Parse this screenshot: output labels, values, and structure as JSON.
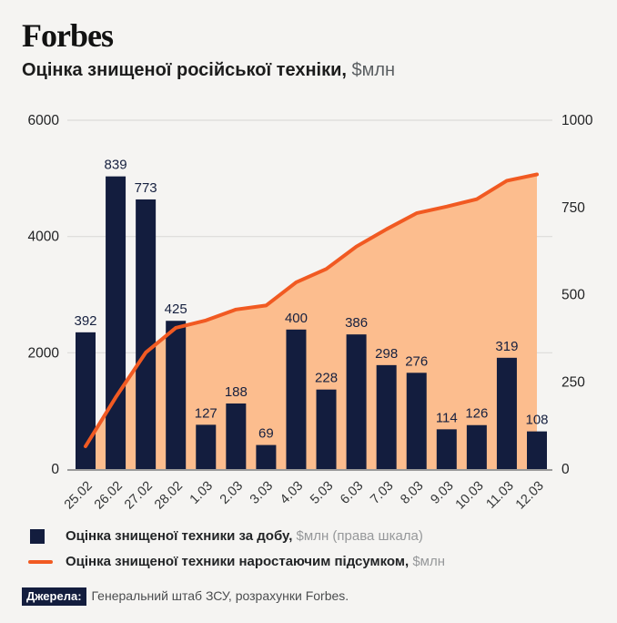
{
  "brand": "Forbes",
  "title": {
    "text": "Оцінка знищеної російської техніки,",
    "unit": "$млн"
  },
  "chart_data": {
    "type": "bar+line",
    "categories": [
      "25.02",
      "26.02",
      "27.02",
      "28.02",
      "1.03",
      "2.03",
      "3.03",
      "4.03",
      "5.03",
      "6.03",
      "7.03",
      "8.03",
      "9.03",
      "10.03",
      "11.03",
      "12.03"
    ],
    "series": [
      {
        "name": "Оцінка знищеної техники за добу, $млн (права шкала)",
        "type": "bar",
        "axis": "right",
        "values": [
          392,
          839,
          773,
          425,
          127,
          188,
          69,
          400,
          228,
          386,
          298,
          276,
          114,
          126,
          319,
          108
        ]
      },
      {
        "name": "Оцінка знищеної техники наростаючим підсумком, $млн",
        "type": "line",
        "axis": "left",
        "values": [
          392,
          1231,
          2004,
          2429,
          2556,
          2744,
          2813,
          3213,
          3441,
          3827,
          4125,
          4401,
          4515,
          4641,
          4960,
          5068
        ]
      }
    ],
    "left_axis": {
      "range": [
        0,
        6000
      ],
      "ticks": [
        0,
        2000,
        4000,
        6000
      ]
    },
    "right_axis": {
      "range": [
        0,
        1000
      ],
      "ticks": [
        0,
        250,
        500,
        750,
        1000
      ]
    },
    "grid": true,
    "legend_position": "bottom",
    "bar_labels_shown": true
  },
  "colors": {
    "bar": "#131d3e",
    "line": "#f15a22",
    "area": "#fcbd8e",
    "background": "#f5f4f2",
    "grid": "#dcdbd8",
    "axis_line": "#9a9a9a",
    "tick_text": "#222325",
    "bar_label": "#16203f"
  },
  "legend": {
    "items": [
      {
        "text": "Оцінка знищеної техники за добу,",
        "suffix": " $млн (права шкала)"
      },
      {
        "text": "Оцінка знищеної техники наростаючим підсумком,",
        "suffix": " $млн"
      }
    ]
  },
  "source": {
    "badge": "Джерела:",
    "text": "Генеральний штаб ЗСУ, розрахунки Forbes."
  }
}
